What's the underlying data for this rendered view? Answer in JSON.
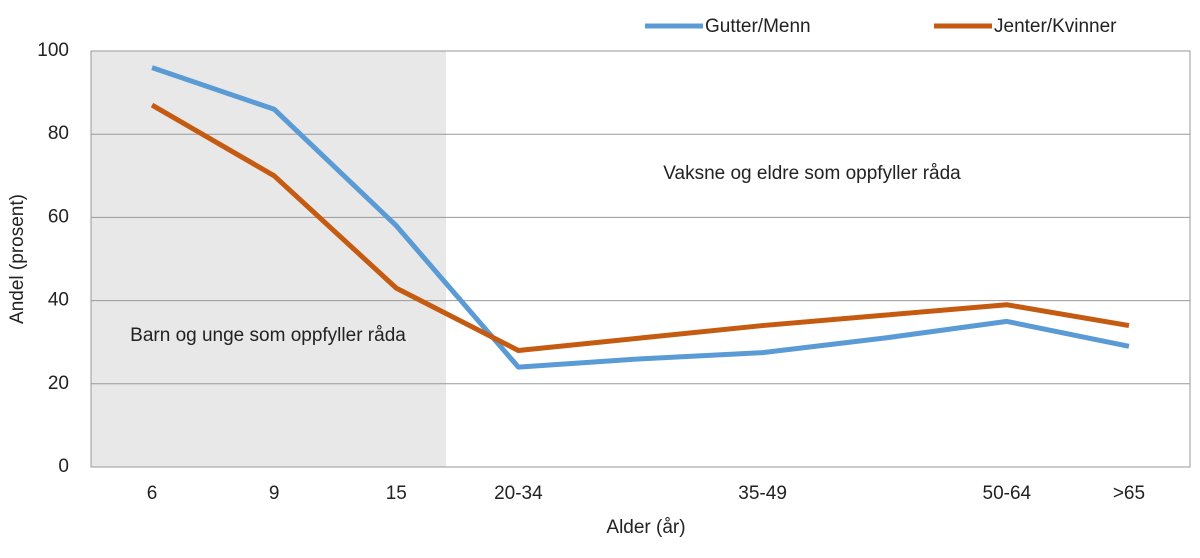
{
  "chart_data": {
    "type": "line",
    "xlabel": "Alder (år)",
    "ylabel": "Andel (prosent)",
    "categories": [
      "6",
      "9",
      "15",
      "20-34",
      null,
      "35-49",
      null,
      "50-64",
      ">65"
    ],
    "series": [
      {
        "name": "Gutter/Menn",
        "color": "#5b9bd5",
        "values": [
          96,
          86,
          58,
          24,
          26,
          27.5,
          31,
          35,
          29
        ]
      },
      {
        "name": "Jenter/Kvinner",
        "color": "#c55a11",
        "values": [
          87,
          70,
          43,
          28,
          31,
          34,
          36.5,
          39,
          34
        ]
      }
    ],
    "annotations": [
      "Barn og unge som oppfyller råda",
      "Vaksne og eldre som oppfyller råda"
    ],
    "ylim": [
      0,
      100
    ],
    "yticks": [
      0,
      20,
      40,
      60,
      80,
      100
    ],
    "grid": true,
    "legend": "top-right"
  }
}
